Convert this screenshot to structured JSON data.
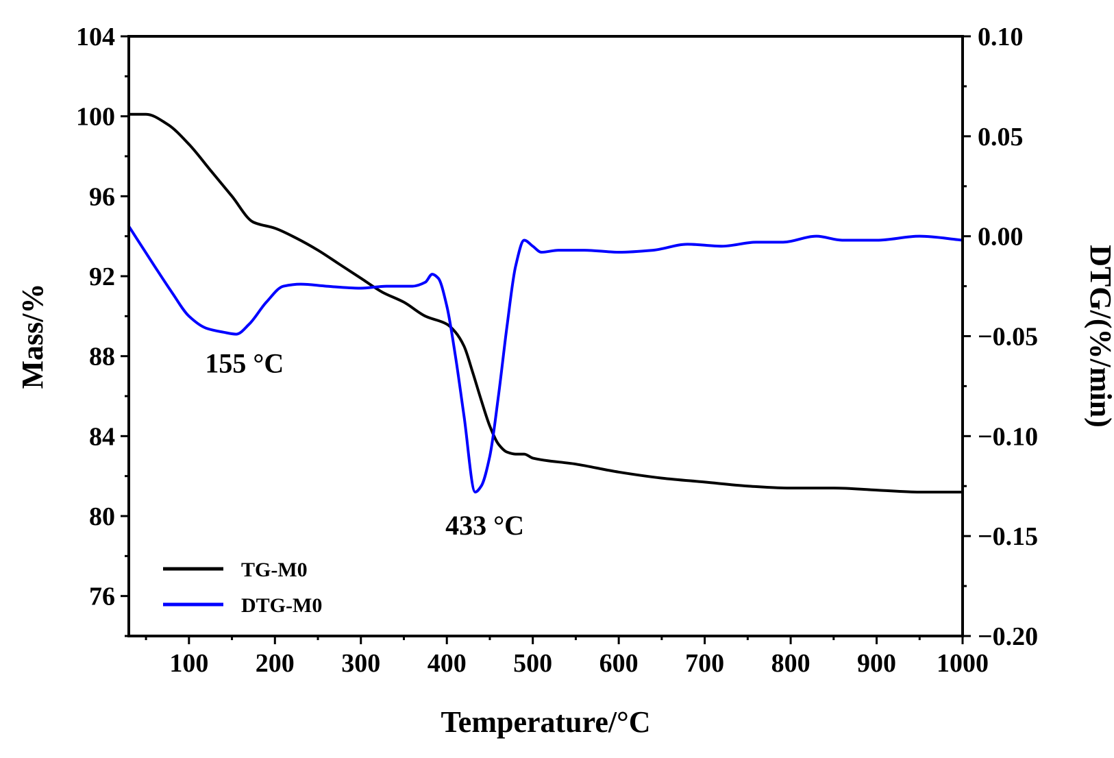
{
  "chart_data": {
    "type": "line",
    "title": "",
    "xlabel": "Temperature/°C",
    "ylabel_left": "Mass/%",
    "ylabel_right": "DTG/(%/min)",
    "xlim": [
      30,
      1000
    ],
    "ylim_left": [
      74,
      104
    ],
    "ylim_right": [
      -0.2,
      0.1
    ],
    "x_ticks": [
      100,
      200,
      300,
      400,
      500,
      600,
      700,
      800,
      900,
      1000
    ],
    "x_tick_labels": [
      "100",
      "200",
      "300",
      "400",
      "500",
      "600",
      "700",
      "800",
      "900",
      "1000"
    ],
    "y_left_ticks": [
      76,
      80,
      84,
      88,
      92,
      96,
      100,
      104
    ],
    "y_left_tick_labels": [
      "76",
      "80",
      "84",
      "88",
      "92",
      "96",
      "100",
      "104"
    ],
    "y_right_ticks": [
      -0.2,
      -0.15,
      -0.1,
      -0.05,
      0.0,
      0.05,
      0.1
    ],
    "y_right_tick_labels": [
      "−0.20",
      "−0.15",
      "−0.10",
      "−0.05",
      "0.00",
      "0.05",
      "0.10"
    ],
    "legend_position": "bottom-left",
    "series": [
      {
        "name": "TG-M0",
        "axis": "left",
        "color": "#000000",
        "x": [
          30,
          50,
          75,
          100,
          125,
          150,
          175,
          200,
          225,
          250,
          275,
          300,
          325,
          350,
          375,
          400,
          410,
          420,
          430,
          440,
          450,
          460,
          470,
          480,
          490,
          500,
          550,
          600,
          650,
          700,
          750,
          800,
          850,
          900,
          950,
          1000
        ],
        "y": [
          100.1,
          100.1,
          99.6,
          98.6,
          97.3,
          96.0,
          94.7,
          94.4,
          93.9,
          93.3,
          92.6,
          91.9,
          91.2,
          90.7,
          90.0,
          89.6,
          89.2,
          88.5,
          87.2,
          85.8,
          84.5,
          83.6,
          83.2,
          83.1,
          83.1,
          82.9,
          82.6,
          82.2,
          81.9,
          81.7,
          81.5,
          81.4,
          81.4,
          81.3,
          81.2,
          81.2
        ]
      },
      {
        "name": "DTG-M0",
        "axis": "right",
        "color": "#0000ff",
        "x": [
          30,
          60,
          80,
          100,
          120,
          140,
          155,
          170,
          190,
          210,
          230,
          260,
          300,
          330,
          360,
          375,
          383,
          390,
          400,
          410,
          420,
          433,
          440,
          450,
          460,
          470,
          480,
          490,
          500,
          510,
          530,
          560,
          600,
          640,
          680,
          720,
          760,
          790,
          830,
          860,
          900,
          950,
          1000
        ],
        "y": [
          0.005,
          -0.015,
          -0.028,
          -0.04,
          -0.046,
          -0.048,
          -0.049,
          -0.044,
          -0.033,
          -0.025,
          -0.024,
          -0.025,
          -0.026,
          -0.025,
          -0.025,
          -0.023,
          -0.019,
          -0.021,
          -0.035,
          -0.06,
          -0.09,
          -0.128,
          -0.125,
          -0.11,
          -0.08,
          -0.045,
          -0.015,
          -0.002,
          -0.005,
          -0.008,
          -0.007,
          -0.007,
          -0.008,
          -0.007,
          -0.004,
          -0.005,
          -0.003,
          -0.003,
          0.0,
          -0.002,
          -0.002,
          0.0,
          -0.002
        ]
      }
    ],
    "annotations": [
      {
        "text": "155 °C",
        "x": 155,
        "y_right": -0.049
      },
      {
        "text": "433 °C",
        "x": 433,
        "y_right": -0.128
      }
    ]
  }
}
